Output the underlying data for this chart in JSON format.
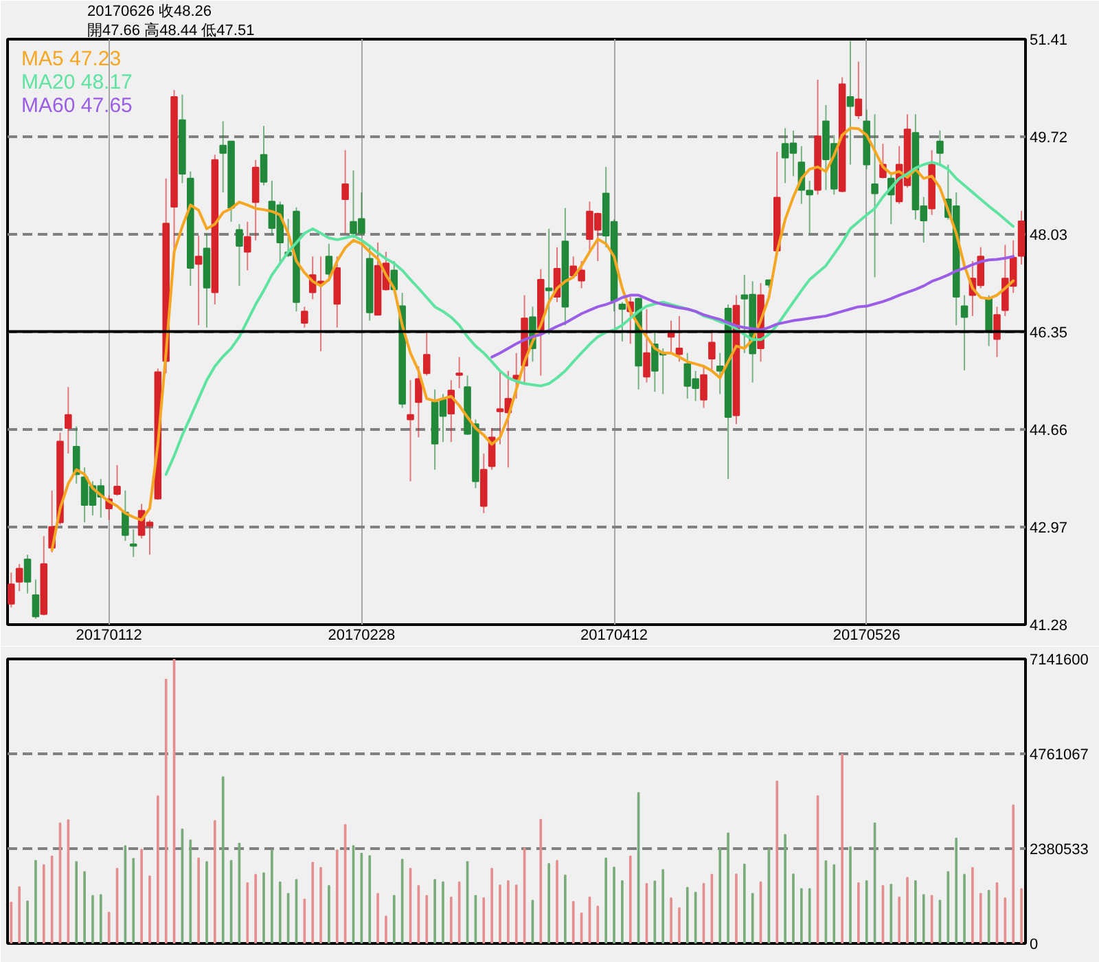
{
  "chart_data": [
    {
      "type": "candlestick",
      "title": "20170626  收48.26",
      "subtitle": "開47.66  高48.44  低47.51",
      "categories": [
        null,
        null,
        null,
        null,
        null,
        null,
        null,
        null,
        null,
        null,
        null,
        null,
        "20170112",
        null,
        null,
        null,
        null,
        null,
        null,
        null,
        null,
        null,
        null,
        null,
        null,
        null,
        null,
        null,
        null,
        null,
        null,
        null,
        null,
        null,
        null,
        null,
        null,
        null,
        null,
        null,
        null,
        null,
        null,
        "20170228",
        null,
        null,
        null,
        null,
        null,
        null,
        null,
        null,
        null,
        null,
        null,
        null,
        null,
        null,
        null,
        null,
        null,
        null,
        null,
        null,
        null,
        null,
        null,
        null,
        null,
        null,
        null,
        null,
        null,
        null,
        "20170412",
        null,
        null,
        null,
        null,
        null,
        null,
        null,
        null,
        null,
        null,
        null,
        null,
        null,
        null,
        null,
        null,
        null,
        null,
        null,
        null,
        null,
        null,
        null,
        null,
        null,
        null,
        null,
        null,
        null,
        null,
        "20170526",
        null,
        null,
        null,
        null,
        null,
        null,
        null,
        null,
        null,
        null,
        null,
        null,
        null,
        null,
        null,
        null,
        null,
        null,
        null
      ],
      "ohlc": [
        [
          41.64,
          42.18,
          41.58,
          41.98
        ],
        [
          42.02,
          42.33,
          41.86,
          42.25
        ],
        [
          42.41,
          42.49,
          41.82,
          42.02
        ],
        [
          41.79,
          42.06,
          41.38,
          41.42
        ],
        [
          41.46,
          42.81,
          41.44,
          42.33
        ],
        [
          42.61,
          43.6,
          42.53,
          42.97
        ],
        [
          43.05,
          44.6,
          43.01,
          44.45
        ],
        [
          44.68,
          45.39,
          44.24,
          44.91
        ],
        [
          44.36,
          44.71,
          43.72,
          43.88
        ],
        [
          43.83,
          44.0,
          43.05,
          43.35
        ],
        [
          43.68,
          43.76,
          43.17,
          43.35
        ],
        [
          43.68,
          43.8,
          43.13,
          43.49
        ],
        [
          43.29,
          43.52,
          43.09,
          43.45
        ],
        [
          43.54,
          44.04,
          43.51,
          43.67
        ],
        [
          43.22,
          43.6,
          42.73,
          42.83
        ],
        [
          42.67,
          42.93,
          42.45,
          42.64
        ],
        [
          42.83,
          43.37,
          42.77,
          43.25
        ],
        [
          42.99,
          43.09,
          42.49,
          43.05
        ],
        [
          43.46,
          45.71,
          43.44,
          45.65
        ],
        [
          45.84,
          49.0,
          45.63,
          48.22
        ],
        [
          48.51,
          50.53,
          47.73,
          50.41
        ],
        [
          50.01,
          50.45,
          48.92,
          49.08
        ],
        [
          49.0,
          49.12,
          47.14,
          47.45
        ],
        [
          47.52,
          48.01,
          46.46,
          47.65
        ],
        [
          47.79,
          48.05,
          46.42,
          47.11
        ],
        [
          47.03,
          49.41,
          46.82,
          49.32
        ],
        [
          49.57,
          49.99,
          48.76,
          49.44
        ],
        [
          49.64,
          49.65,
          48.25,
          48.49
        ],
        [
          48.11,
          48.21,
          47.14,
          47.83
        ],
        [
          47.73,
          48.25,
          47.41,
          47.99
        ],
        [
          48.59,
          49.32,
          47.93,
          49.19
        ],
        [
          49.41,
          49.91,
          48.88,
          48.94
        ],
        [
          48.6,
          48.96,
          48.01,
          48.14
        ],
        [
          48.54,
          48.6,
          47.53,
          47.89
        ],
        [
          47.72,
          48.3,
          47.64,
          47.67
        ],
        [
          48.43,
          48.5,
          46.7,
          46.86
        ],
        [
          46.5,
          46.78,
          46.42,
          46.7
        ],
        [
          47.03,
          47.65,
          46.91,
          47.33
        ],
        [
          47.18,
          47.65,
          46.01,
          47.22
        ],
        [
          47.65,
          47.87,
          47.22,
          47.35
        ],
        [
          46.83,
          47.65,
          46.42,
          47.45
        ],
        [
          48.64,
          49.49,
          48.05,
          48.9
        ],
        [
          48.25,
          49.14,
          47.97,
          48.05
        ],
        [
          48.3,
          48.76,
          48.01,
          48.05
        ],
        [
          47.61,
          47.81,
          46.54,
          46.68
        ],
        [
          46.64,
          47.89,
          46.63,
          47.49
        ],
        [
          47.08,
          47.73,
          47.06,
          47.53
        ],
        [
          47.41,
          47.57,
          47.02,
          47.08
        ],
        [
          46.79,
          47.02,
          45.03,
          45.1
        ],
        [
          44.83,
          45.51,
          43.76,
          44.91
        ],
        [
          45.13,
          45.75,
          44.52,
          45.53
        ],
        [
          45.63,
          46.34,
          45.59,
          45.95
        ],
        [
          45.13,
          45.35,
          43.96,
          44.41
        ],
        [
          45.17,
          45.27,
          44.44,
          44.89
        ],
        [
          44.93,
          45.51,
          44.44,
          45.33
        ],
        [
          45.6,
          45.91,
          45.37,
          45.63
        ],
        [
          45.39,
          45.59,
          44.56,
          44.58
        ],
        [
          44.75,
          44.83,
          43.64,
          43.76
        ],
        [
          43.33,
          44.24,
          43.21,
          43.96
        ],
        [
          44.02,
          44.68,
          43.96,
          44.52
        ],
        [
          44.97,
          45.67,
          44.4,
          45.01
        ],
        [
          44.95,
          45.67,
          44.0,
          45.19
        ],
        [
          45.53,
          45.98,
          45.19,
          45.59
        ],
        [
          45.76,
          46.98,
          45.43,
          46.58
        ],
        [
          46.6,
          46.78,
          45.83,
          46.06
        ],
        [
          46.34,
          47.43,
          45.59,
          47.25
        ],
        [
          47.1,
          48.13,
          46.3,
          47.06
        ],
        [
          46.95,
          47.81,
          46.86,
          47.44
        ],
        [
          47.91,
          48.49,
          46.46,
          46.78
        ],
        [
          47.32,
          47.65,
          47.29,
          47.48
        ],
        [
          47.23,
          47.57,
          47.1,
          47.41
        ],
        [
          47.95,
          48.6,
          47.73,
          48.43
        ],
        [
          48.11,
          48.41,
          47.57,
          48.39
        ],
        [
          48.74,
          49.2,
          47.81,
          48.01
        ],
        [
          48.25,
          48.29,
          46.7,
          46.88
        ],
        [
          46.82,
          46.86,
          46.18,
          46.74
        ],
        [
          46.7,
          46.95,
          46.14,
          46.86
        ],
        [
          46.92,
          46.94,
          45.35,
          45.76
        ],
        [
          45.57,
          46.74,
          45.47,
          45.98
        ],
        [
          46.13,
          46.34,
          45.31,
          45.67
        ],
        [
          45.98,
          46.06,
          45.27,
          45.95
        ],
        [
          46.26,
          46.54,
          45.98,
          46.33
        ],
        [
          45.96,
          46.62,
          45.83,
          46.06
        ],
        [
          45.79,
          45.98,
          45.19,
          45.41
        ],
        [
          45.53,
          45.67,
          45.15,
          45.37
        ],
        [
          45.17,
          45.75,
          45.03,
          45.6
        ],
        [
          45.88,
          46.38,
          45.67,
          46.16
        ],
        [
          45.75,
          45.98,
          45.27,
          45.67
        ],
        [
          46.75,
          46.82,
          43.8,
          44.87
        ],
        [
          44.9,
          46.98,
          44.75,
          46.8
        ],
        [
          46.98,
          47.33,
          45.98,
          46.92
        ],
        [
          46.99,
          47.22,
          45.47,
          45.97
        ],
        [
          46.06,
          47.19,
          45.83,
          46.98
        ],
        [
          47.24,
          47.25,
          47.11,
          47.16
        ],
        [
          47.75,
          49.46,
          47.69,
          48.67
        ],
        [
          49.6,
          49.87,
          48.92,
          49.36
        ],
        [
          49.61,
          49.83,
          49.04,
          49.44
        ],
        [
          49.28,
          49.56,
          48.56,
          48.8
        ],
        [
          48.79,
          48.96,
          48.05,
          48.72
        ],
        [
          48.8,
          50.71,
          48.72,
          49.73
        ],
        [
          49.99,
          50.27,
          48.8,
          49.33
        ],
        [
          49.6,
          49.75,
          48.72,
          48.82
        ],
        [
          48.78,
          50.75,
          48.76,
          50.63
        ],
        [
          50.41,
          51.38,
          49.24,
          50.25
        ],
        [
          50.09,
          51.02,
          50.03,
          50.37
        ],
        [
          49.99,
          50.19,
          49.16,
          49.24
        ],
        [
          48.9,
          50.11,
          47.29,
          48.74
        ],
        [
          49.02,
          49.6,
          49.0,
          49.24
        ],
        [
          49.0,
          49.1,
          48.21,
          48.72
        ],
        [
          48.6,
          49.56,
          48.56,
          49.24
        ],
        [
          48.88,
          50.11,
          48.84,
          49.85
        ],
        [
          49.79,
          50.11,
          48.29,
          48.46
        ],
        [
          48.52,
          48.68,
          47.89,
          48.27
        ],
        [
          48.48,
          49.49,
          48.37,
          49.24
        ],
        [
          49.64,
          49.83,
          49.24,
          49.44
        ],
        [
          48.64,
          49.24,
          48.29,
          48.33
        ],
        [
          48.52,
          48.76,
          46.46,
          46.95
        ],
        [
          46.79,
          46.98,
          45.68,
          46.6
        ],
        [
          46.98,
          47.57,
          46.62,
          47.27
        ],
        [
          47.15,
          47.81,
          47.1,
          47.65
        ],
        [
          46.92,
          46.98,
          46.1,
          46.34
        ],
        [
          46.22,
          46.78,
          45.91,
          46.64
        ],
        [
          46.72,
          47.85,
          46.62,
          47.27
        ],
        [
          47.14,
          47.93,
          47.02,
          47.63
        ],
        [
          47.66,
          48.44,
          47.51,
          48.26
        ]
      ],
      "colors": [
        "#d7242a",
        "#d7242a",
        "#22893a",
        "#22893a",
        "#d7242a",
        "#d7242a",
        "#d7242a",
        "#d7242a",
        "#22893a",
        "#22893a",
        "#22893a",
        "#22893a",
        "#d7242a",
        "#d7242a",
        "#22893a",
        "#22893a",
        "#d7242a",
        "#d7242a",
        "#d7242a",
        "#d7242a",
        "#d7242a",
        "#22893a",
        "#22893a",
        "#d7242a",
        "#22893a",
        "#d7242a",
        "#22893a",
        "#22893a",
        "#22893a",
        "#d7242a",
        "#d7242a",
        "#22893a",
        "#22893a",
        "#22893a",
        "#22893a",
        "#22893a",
        "#d7242a",
        "#d7242a",
        "#d7242a",
        "#22893a",
        "#d7242a",
        "#d7242a",
        "#22893a",
        "#22893a",
        "#22893a",
        "#d7242a",
        "#d7242a",
        "#22893a",
        "#22893a",
        "#d7242a",
        "#d7242a",
        "#d7242a",
        "#22893a",
        "#22893a",
        "#d7242a",
        "#d7242a",
        "#22893a",
        "#22893a",
        "#d7242a",
        "#d7242a",
        "#d7242a",
        "#d7242a",
        "#d7242a",
        "#d7242a",
        "#22893a",
        "#d7242a",
        "#22893a",
        "#d7242a",
        "#22893a",
        "#d7242a",
        "#d7242a",
        "#d7242a",
        "#d7242a",
        "#22893a",
        "#22893a",
        "#22893a",
        "#d7242a",
        "#22893a",
        "#d7242a",
        "#22893a",
        "#22893a",
        "#d7242a",
        "#d7242a",
        "#22893a",
        "#22893a",
        "#d7242a",
        "#d7242a",
        "#22893a",
        "#22893a",
        "#d7242a",
        "#22893a",
        "#22893a",
        "#d7242a",
        "#22893a",
        "#d7242a",
        "#22893a",
        "#22893a",
        "#22893a",
        "#22893a",
        "#d7242a",
        "#22893a",
        "#22893a",
        "#d7242a",
        "#22893a",
        "#d7242a",
        "#22893a",
        "#22893a",
        "#d7242a",
        "#22893a",
        "#d7242a",
        "#d7242a",
        "#22893a",
        "#22893a",
        "#d7242a",
        "#22893a",
        "#22893a",
        "#22893a",
        "#22893a",
        "#d7242a",
        "#d7242a",
        "#22893a",
        "#d7242a",
        "#d7242a",
        "#d7242a",
        "#d7242a"
      ],
      "series": [
        {
          "name": "MA5 47.23",
          "type": "line",
          "color": "#f5a623",
          "values": [
            null,
            null,
            null,
            null,
            null,
            42.57,
            43.29,
            43.72,
            43.96,
            43.88,
            43.64,
            43.52,
            43.41,
            43.33,
            43.21,
            43.14,
            43.09,
            43.29,
            44.4,
            45.98,
            47.73,
            48.17,
            48.54,
            48.45,
            48.13,
            48.21,
            48.41,
            48.48,
            48.59,
            48.54,
            48.48,
            48.46,
            48.43,
            48.37,
            48.05,
            47.57,
            47.37,
            47.22,
            47.14,
            47.25,
            47.57,
            47.8,
            47.93,
            47.87,
            47.73,
            47.61,
            47.33,
            47.1,
            46.46,
            45.98,
            45.67,
            45.19,
            45.15,
            45.19,
            45.23,
            45.07,
            44.87,
            44.68,
            44.56,
            44.4,
            44.52,
            44.87,
            45.35,
            45.83,
            46.18,
            46.46,
            46.86,
            47.1,
            47.22,
            47.29,
            47.49,
            47.73,
            47.95,
            47.87,
            47.65,
            47.1,
            46.7,
            46.46,
            46.26,
            46.06,
            45.98,
            45.98,
            45.91,
            45.83,
            45.79,
            45.75,
            45.67,
            45.55,
            45.83,
            46.1,
            46.06,
            46.21,
            46.54,
            46.94,
            47.73,
            48.29,
            48.68,
            49.0,
            49.16,
            49.2,
            49.12,
            49.4,
            49.75,
            49.87,
            49.86,
            49.75,
            49.48,
            49.2,
            49.08,
            49.12,
            49.02,
            49.16,
            49.0,
            49.04,
            48.84,
            48.45,
            48.05,
            47.49,
            47.1,
            46.94,
            46.92,
            46.98,
            47.1,
            47.23,
            null
          ]
        },
        {
          "name": "MA20 48.17",
          "type": "line",
          "color": "#5fe3a1",
          "values": [
            null,
            null,
            null,
            null,
            null,
            null,
            null,
            null,
            null,
            null,
            null,
            null,
            null,
            null,
            null,
            null,
            null,
            null,
            null,
            43.88,
            44.2,
            44.56,
            44.87,
            45.19,
            45.51,
            45.75,
            45.92,
            46.06,
            46.26,
            46.54,
            46.82,
            47.06,
            47.33,
            47.53,
            47.73,
            47.89,
            48.05,
            48.13,
            48.05,
            47.97,
            47.94,
            47.97,
            48.01,
            47.93,
            47.83,
            47.71,
            47.61,
            47.53,
            47.41,
            47.25,
            47.1,
            46.94,
            46.78,
            46.7,
            46.6,
            46.46,
            46.26,
            46.1,
            45.98,
            45.83,
            45.67,
            45.55,
            45.49,
            45.45,
            45.43,
            45.41,
            45.45,
            45.55,
            45.67,
            45.83,
            45.98,
            46.13,
            46.26,
            46.34,
            46.38,
            46.46,
            46.58,
            46.7,
            46.79,
            46.83,
            46.86,
            46.82,
            46.78,
            46.74,
            46.7,
            46.62,
            46.58,
            46.52,
            46.48,
            46.4,
            46.3,
            46.21,
            46.21,
            46.3,
            46.46,
            46.66,
            46.86,
            47.06,
            47.25,
            47.37,
            47.49,
            47.69,
            47.89,
            48.13,
            48.25,
            48.37,
            48.48,
            48.68,
            48.84,
            49.0,
            49.08,
            49.18,
            49.24,
            49.28,
            49.24,
            49.16,
            49.0,
            48.88,
            48.76,
            48.64,
            48.52,
            48.41,
            48.29,
            48.17,
            null
          ]
        },
        {
          "name": "MA60 47.65",
          "type": "line",
          "color": "#9b5de5",
          "values": [
            null,
            null,
            null,
            null,
            null,
            null,
            null,
            null,
            null,
            null,
            null,
            null,
            null,
            null,
            null,
            null,
            null,
            null,
            null,
            null,
            null,
            null,
            null,
            null,
            null,
            null,
            null,
            null,
            null,
            null,
            null,
            null,
            null,
            null,
            null,
            null,
            null,
            null,
            null,
            null,
            null,
            null,
            null,
            null,
            null,
            null,
            null,
            null,
            null,
            null,
            null,
            null,
            null,
            null,
            null,
            null,
            null,
            null,
            null,
            45.91,
            45.98,
            46.06,
            46.14,
            46.21,
            46.26,
            46.3,
            46.37,
            46.44,
            46.5,
            46.58,
            46.66,
            46.72,
            46.78,
            46.82,
            46.87,
            46.94,
            46.98,
            46.98,
            46.92,
            46.86,
            46.82,
            46.79,
            46.76,
            46.74,
            46.7,
            46.64,
            46.6,
            46.56,
            46.5,
            46.45,
            46.42,
            46.4,
            46.38,
            46.42,
            46.48,
            46.51,
            46.54,
            46.56,
            46.58,
            46.6,
            46.62,
            46.66,
            46.7,
            46.74,
            46.78,
            46.79,
            46.83,
            46.87,
            46.92,
            46.98,
            47.03,
            47.08,
            47.14,
            47.22,
            47.27,
            47.33,
            47.4,
            47.45,
            47.51,
            47.56,
            47.59,
            47.6,
            47.62,
            47.65,
            null
          ]
        }
      ],
      "ylim": [
        41.28,
        51.41
      ],
      "yticks": [
        41.28,
        42.97,
        44.66,
        46.35,
        48.03,
        49.72,
        51.41
      ],
      "grid": true,
      "legend": "top left",
      "ref_lines": [
        {
          "axis": "y",
          "value": 46.35,
          "color": "#000000",
          "line_style": "solid"
        }
      ]
    },
    {
      "type": "bar",
      "categories": [
        null,
        null,
        null,
        null,
        null,
        null,
        null,
        null,
        null,
        null,
        null,
        null,
        null,
        null,
        null,
        null,
        null,
        null,
        null,
        null,
        null,
        null,
        null,
        null,
        null,
        null,
        null,
        null,
        null,
        null,
        null,
        null,
        null,
        null,
        null,
        null,
        null,
        null,
        null,
        null,
        null,
        null,
        null,
        null,
        null,
        null,
        null,
        null,
        null,
        null,
        null,
        null,
        null,
        null,
        null,
        null,
        null,
        null,
        null,
        null,
        null,
        null,
        null,
        null,
        null,
        null,
        null,
        null,
        null,
        null,
        null,
        null,
        null,
        null,
        null,
        null,
        null,
        null,
        null,
        null,
        null,
        null,
        null,
        null,
        null,
        null,
        null,
        null,
        null,
        null,
        null,
        null,
        null,
        null,
        null,
        null,
        null,
        null,
        null,
        null,
        null,
        null,
        null,
        null,
        null,
        null,
        null,
        null,
        null,
        null,
        null,
        null,
        null,
        null,
        null,
        null,
        null,
        null,
        null,
        null,
        null,
        null,
        null,
        null,
        null
      ],
      "values": [
        1030000,
        1420000,
        1060000,
        2080000,
        1970000,
        2190000,
        3020000,
        3100000,
        2050000,
        1800000,
        1200000,
        1220000,
        780000,
        1880000,
        2450000,
        2130000,
        2360000,
        1690000,
        3700000,
        6630000,
        7140000,
        2870000,
        2590000,
        2140000,
        2050000,
        3080000,
        4180000,
        2080000,
        2510000,
        1520000,
        1730000,
        1770000,
        2340000,
        1540000,
        1250000,
        1600000,
        1110000,
        2030000,
        1900000,
        1450000,
        2340000,
        2980000,
        2450000,
        2260000,
        2200000,
        1250000,
        680000,
        1200000,
        2110000,
        1880000,
        1450000,
        1200000,
        1600000,
        1540000,
        1160000,
        1540000,
        2050000,
        1200000,
        1140000,
        1880000,
        1460000,
        1570000,
        1460000,
        2390000,
        1080000,
        3110000,
        2000000,
        2080000,
        1710000,
        1050000,
        760000,
        1160000,
        930000,
        2140000,
        1910000,
        1570000,
        2190000,
        3780000,
        1500000,
        1560000,
        1850000,
        1140000,
        890000,
        1400000,
        1280000,
        1500000,
        1730000,
        2390000,
        2770000,
        1740000,
        1990000,
        1250000,
        1540000,
        2370000,
        4070000,
        2730000,
        1740000,
        1370000,
        1370000,
        3700000,
        2070000,
        1970000,
        4750000,
        2420000,
        1520000,
        1570000,
        3020000,
        1450000,
        1480000,
        1160000,
        1650000,
        1570000,
        1220000,
        1200000,
        1080000,
        1800000,
        2640000,
        1730000,
        1900000,
        1250000,
        1330000,
        1520000,
        1140000,
        3470000,
        1370000
      ],
      "colors": [
        "#e58e8e",
        "#e58e8e",
        "#7aab7a",
        "#7aab7a",
        "#e58e8e",
        "#e58e8e",
        "#e58e8e",
        "#e58e8e",
        "#7aab7a",
        "#7aab7a",
        "#7aab7a",
        "#7aab7a",
        "#e58e8e",
        "#e58e8e",
        "#7aab7a",
        "#7aab7a",
        "#e58e8e",
        "#e58e8e",
        "#e58e8e",
        "#e58e8e",
        "#e58e8e",
        "#7aab7a",
        "#7aab7a",
        "#e58e8e",
        "#7aab7a",
        "#e58e8e",
        "#7aab7a",
        "#7aab7a",
        "#7aab7a",
        "#e58e8e",
        "#e58e8e",
        "#7aab7a",
        "#7aab7a",
        "#7aab7a",
        "#7aab7a",
        "#7aab7a",
        "#e58e8e",
        "#e58e8e",
        "#e58e8e",
        "#7aab7a",
        "#e58e8e",
        "#e58e8e",
        "#7aab7a",
        "#7aab7a",
        "#7aab7a",
        "#e58e8e",
        "#e58e8e",
        "#7aab7a",
        "#7aab7a",
        "#e58e8e",
        "#e58e8e",
        "#e58e8e",
        "#7aab7a",
        "#7aab7a",
        "#e58e8e",
        "#e58e8e",
        "#7aab7a",
        "#7aab7a",
        "#e58e8e",
        "#e58e8e",
        "#e58e8e",
        "#e58e8e",
        "#e58e8e",
        "#e58e8e",
        "#7aab7a",
        "#e58e8e",
        "#7aab7a",
        "#e58e8e",
        "#7aab7a",
        "#e58e8e",
        "#e58e8e",
        "#e58e8e",
        "#e58e8e",
        "#7aab7a",
        "#7aab7a",
        "#7aab7a",
        "#e58e8e",
        "#7aab7a",
        "#e58e8e",
        "#7aab7a",
        "#7aab7a",
        "#e58e8e",
        "#e58e8e",
        "#7aab7a",
        "#7aab7a",
        "#e58e8e",
        "#e58e8e",
        "#7aab7a",
        "#7aab7a",
        "#e58e8e",
        "#7aab7a",
        "#7aab7a",
        "#e58e8e",
        "#7aab7a",
        "#e58e8e",
        "#7aab7a",
        "#7aab7a",
        "#7aab7a",
        "#7aab7a",
        "#e58e8e",
        "#7aab7a",
        "#7aab7a",
        "#e58e8e",
        "#7aab7a",
        "#e58e8e",
        "#7aab7a",
        "#7aab7a",
        "#e58e8e",
        "#7aab7a",
        "#e58e8e",
        "#e58e8e",
        "#7aab7a",
        "#7aab7a",
        "#e58e8e",
        "#7aab7a",
        "#7aab7a",
        "#7aab7a",
        "#7aab7a",
        "#e58e8e",
        "#e58e8e",
        "#7aab7a",
        "#e58e8e",
        "#e58e8e",
        "#e58e8e",
        "#e58e8e"
      ],
      "ylim": [
        0,
        7141600
      ],
      "yticks": [
        0,
        2380533,
        4761067,
        7141600
      ],
      "grid": "y",
      "tick_labels": "y"
    }
  ]
}
